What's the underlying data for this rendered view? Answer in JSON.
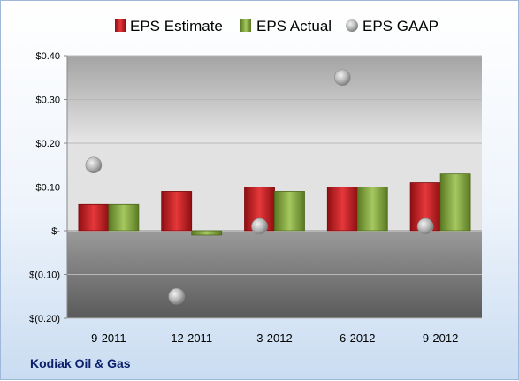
{
  "chart_data": {
    "type": "bar",
    "categories": [
      "9-2011",
      "12-2011",
      "3-2012",
      "6-2012",
      "9-2012"
    ],
    "series": [
      {
        "name": "EPS Estimate",
        "kind": "bar",
        "color": "#c0161a",
        "values": [
          0.06,
          0.09,
          0.1,
          0.1,
          0.11
        ]
      },
      {
        "name": "EPS Actual",
        "kind": "bar",
        "color": "#7fa23a",
        "values": [
          0.06,
          -0.01,
          0.09,
          0.1,
          0.13
        ]
      },
      {
        "name": "EPS GAAP",
        "kind": "scatter",
        "color": "#a6a6a6",
        "values": [
          0.15,
          -0.15,
          0.01,
          0.35,
          0.01
        ]
      }
    ],
    "y_ticks": [
      {
        "value": 0.4,
        "label": "$0.40"
      },
      {
        "value": 0.3,
        "label": "$0.30"
      },
      {
        "value": 0.2,
        "label": "$0.20"
      },
      {
        "value": 0.1,
        "label": "$0.10"
      },
      {
        "value": 0.0,
        "label": "$-"
      },
      {
        "value": -0.1,
        "label": "$(0.10)"
      },
      {
        "value": -0.2,
        "label": "$(0.20)"
      }
    ],
    "ylim": [
      -0.2,
      0.4
    ],
    "grid": true,
    "legend_position": "top",
    "company": "Kodiak Oil & Gas"
  }
}
